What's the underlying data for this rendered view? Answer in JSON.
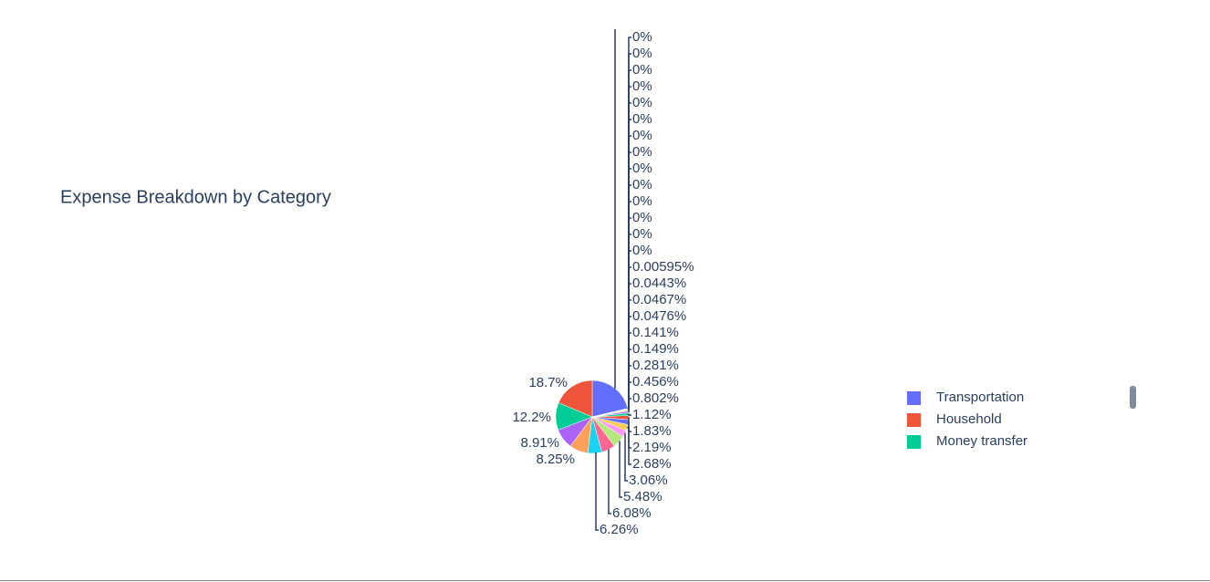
{
  "chart_data": {
    "type": "pie",
    "title": "Expense Breakdown by Category",
    "categories": [
      "Transportation",
      "Household",
      "Money transfer",
      null,
      null,
      null,
      null,
      null,
      null,
      null,
      null,
      null,
      null,
      null,
      null,
      null,
      null,
      null,
      null,
      null,
      null,
      null,
      null,
      null,
      null,
      null,
      null,
      null,
      null,
      null,
      null,
      null,
      null,
      null,
      null,
      null
    ],
    "values": [
      21.3,
      18.7,
      12.2,
      8.91,
      8.25,
      6.26,
      6.08,
      5.48,
      3.06,
      2.68,
      2.19,
      1.83,
      1.12,
      0.802,
      0.456,
      0.281,
      0.149,
      0.141,
      0.0476,
      0.0467,
      0.0443,
      0.00595,
      0,
      0,
      0,
      0,
      0,
      0,
      0,
      0,
      0,
      0,
      0,
      0,
      0,
      0
    ],
    "value_labels": [
      null,
      "18.7%",
      "12.2%",
      "8.91%",
      "8.25%",
      "6.26%",
      "6.08%",
      "5.48%",
      "3.06%",
      "2.68%",
      "2.19%",
      "1.83%",
      "1.12%",
      "0.802%",
      "0.456%",
      "0.281%",
      "0.149%",
      "0.141%",
      "0.0476%",
      "0.0467%",
      "0.0443%",
      "0.00595%",
      "0%",
      "0%",
      "0%",
      "0%",
      "0%",
      "0%",
      "0%",
      "0%",
      "0%",
      "0%",
      "0%",
      "0%",
      "0%",
      "0%"
    ],
    "colors": [
      "#636efa",
      "#ef553b",
      "#00cc96",
      "#ab63fa",
      "#ffa15a",
      "#19d3f3",
      "#ff6692",
      "#b6e880",
      "#ff97ff",
      "#fecb52"
    ],
    "legend": "right"
  }
}
